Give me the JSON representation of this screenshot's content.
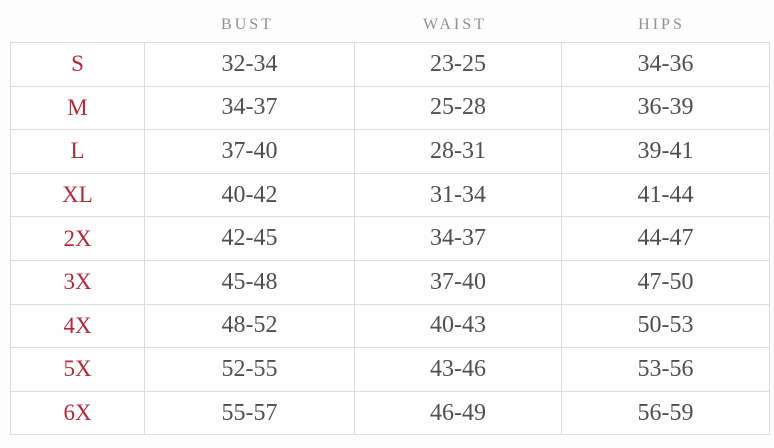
{
  "colors": {
    "size_label_red": "#ae2b3c",
    "header_gray": "#8f8f8f",
    "value_gray": "#4f4f4f",
    "border": "#dcdcdc",
    "background": "#fdfdfd"
  },
  "table": {
    "headers": {
      "size": "",
      "bust": "BUST",
      "waist": "WAIST",
      "hips": "HIPS"
    },
    "rows": [
      {
        "size": "S",
        "bust": "32-34",
        "waist": "23-25",
        "hips": "34-36"
      },
      {
        "size": "M",
        "bust": "34-37",
        "waist": "25-28",
        "hips": "36-39"
      },
      {
        "size": "L",
        "bust": "37-40",
        "waist": "28-31",
        "hips": "39-41"
      },
      {
        "size": "XL",
        "bust": "40-42",
        "waist": "31-34",
        "hips": "41-44"
      },
      {
        "size": "2X",
        "bust": "42-45",
        "waist": "34-37",
        "hips": "44-47"
      },
      {
        "size": "3X",
        "bust": "45-48",
        "waist": "37-40",
        "hips": "47-50"
      },
      {
        "size": "4X",
        "bust": "48-52",
        "waist": "40-43",
        "hips": "50-53"
      },
      {
        "size": "5X",
        "bust": "52-55",
        "waist": "43-46",
        "hips": "53-56"
      },
      {
        "size": "6X",
        "bust": "55-57",
        "waist": "46-49",
        "hips": "56-59"
      }
    ]
  }
}
